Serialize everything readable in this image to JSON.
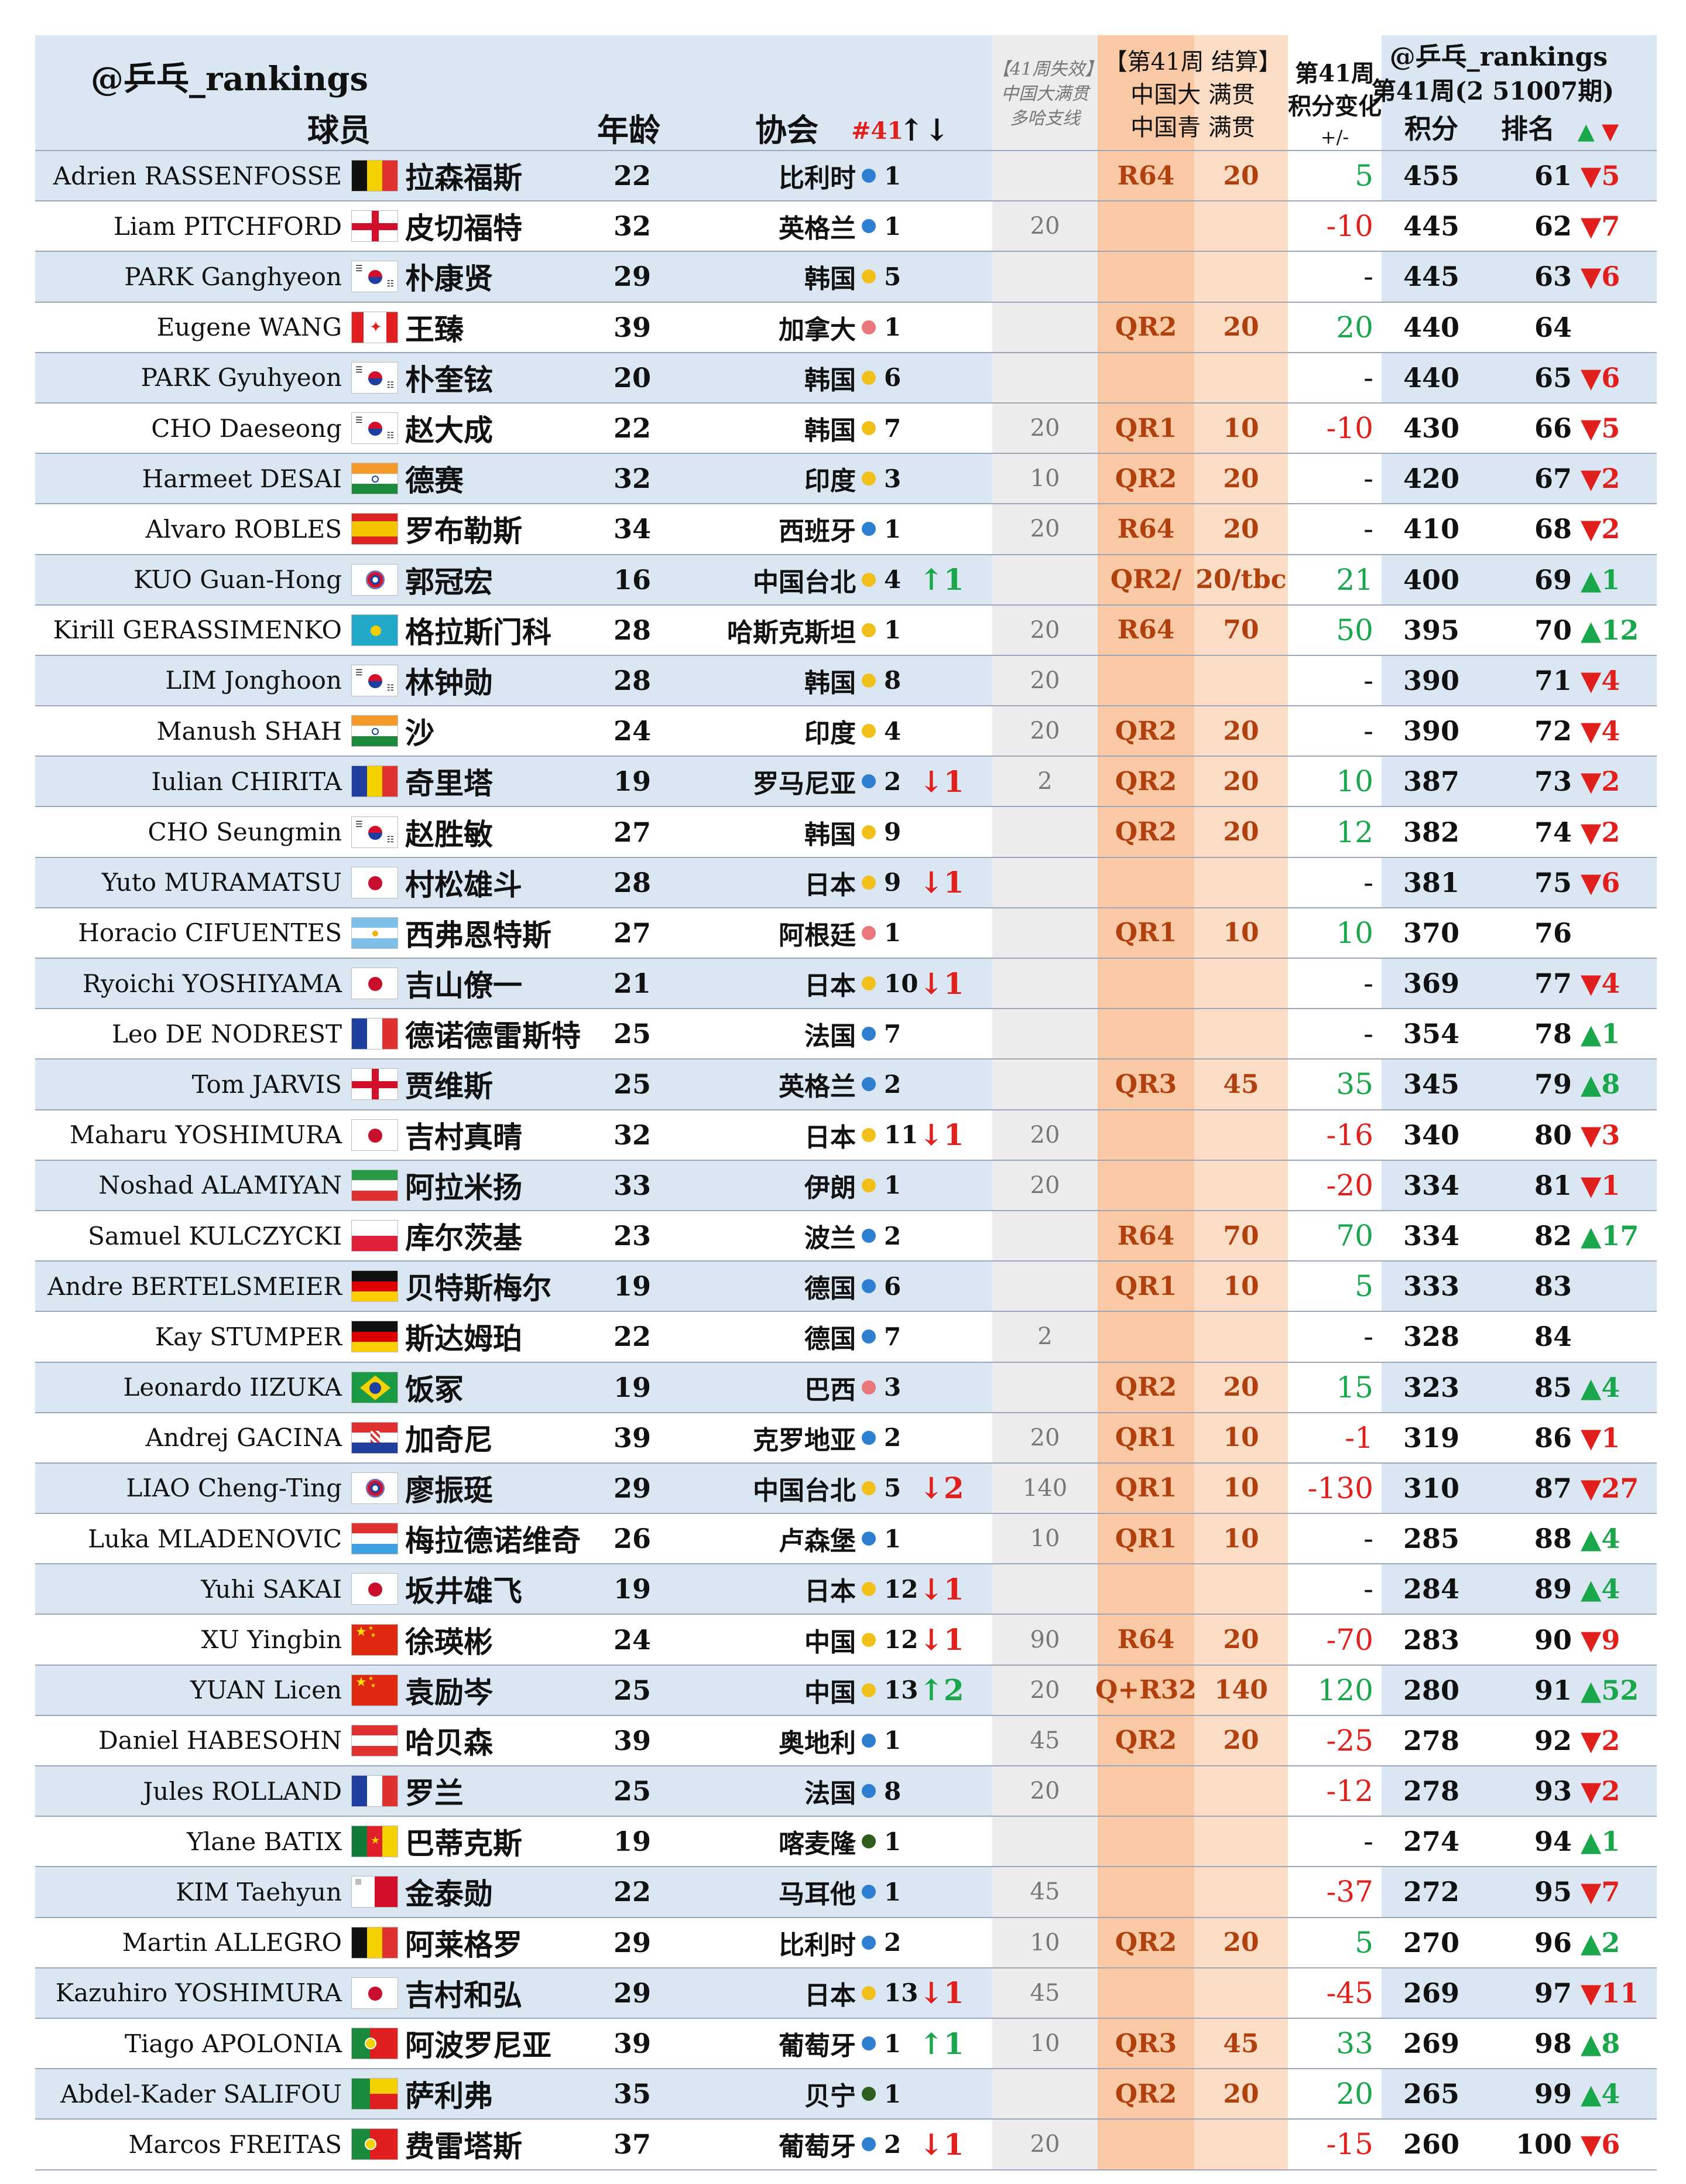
{
  "header": {
    "handle_left": "@乒乓_rankings",
    "col_player": "球员",
    "col_age": "年龄",
    "col_assoc": "协会",
    "col_rank41": "#41",
    "col_rank41_arrows": "↑↓",
    "expiry_line1": "【41周失效】",
    "expiry_line2": "中国大满贯",
    "expiry_line3": "多哈支线",
    "event_line1": "【第41周 结算】",
    "event_line2": "中国大 满贯",
    "event_line3": "中国青 满贯",
    "change_line1": "第41周",
    "change_line2": "积分变化",
    "change_line3": "+/-",
    "handle_right": "@乒乓_rankings",
    "week_label": "第41周(2 51007期)",
    "col_points": "积分",
    "col_rank": "排名",
    "rank_arrows": "▲ ▼"
  },
  "colors": {
    "blue": "#2f7fd0",
    "yellow": "#f2c01b",
    "pink": "#e8767a",
    "darkgreen": "#2e5e1e",
    "up": "#1aa64a",
    "down": "#e0201c"
  },
  "players": [
    {
      "en": "Adrien RASSENFOSSE",
      "flag": "belgium",
      "cn": "拉森福斯",
      "age": "22",
      "assoc": "比利时",
      "dot": "blue",
      "rk": "1",
      "rkchg": "",
      "rkdir": "",
      "exp": "",
      "ev": "R64",
      "ep": "20",
      "chg": "5",
      "chgdir": "up",
      "pts": "455",
      "pos": "61",
      "mv": "▼5",
      "mvdir": "down"
    },
    {
      "en": "Liam PITCHFORD",
      "flag": "england",
      "cn": "皮切福特",
      "age": "32",
      "assoc": "英格兰",
      "dot": "blue",
      "rk": "1",
      "rkchg": "",
      "rkdir": "",
      "exp": "20",
      "ev": "",
      "ep": "",
      "chg": "-10",
      "chgdir": "down",
      "pts": "445",
      "pos": "62",
      "mv": "▼7",
      "mvdir": "down"
    },
    {
      "en": "PARK Ganghyeon",
      "flag": "korea",
      "cn": "朴康贤",
      "age": "29",
      "assoc": "韩国",
      "dot": "yellow",
      "rk": "5",
      "rkchg": "",
      "rkdir": "",
      "exp": "",
      "ev": "",
      "ep": "",
      "chg": "-",
      "chgdir": "none",
      "pts": "445",
      "pos": "63",
      "mv": "▼6",
      "mvdir": "down"
    },
    {
      "en": "Eugene WANG",
      "flag": "canada",
      "cn": "王臻",
      "age": "39",
      "assoc": "加拿大",
      "dot": "pink",
      "rk": "1",
      "rkchg": "",
      "rkdir": "",
      "exp": "",
      "ev": "QR2",
      "ep": "20",
      "chg": "20",
      "chgdir": "up",
      "pts": "440",
      "pos": "64",
      "mv": "",
      "mvdir": ""
    },
    {
      "en": "PARK Gyuhyeon",
      "flag": "korea",
      "cn": "朴奎铉",
      "age": "20",
      "assoc": "韩国",
      "dot": "yellow",
      "rk": "6",
      "rkchg": "",
      "rkdir": "",
      "exp": "",
      "ev": "",
      "ep": "",
      "chg": "-",
      "chgdir": "none",
      "pts": "440",
      "pos": "65",
      "mv": "▼6",
      "mvdir": "down"
    },
    {
      "en": "CHO Daeseong",
      "flag": "korea",
      "cn": "赵大成",
      "age": "22",
      "assoc": "韩国",
      "dot": "yellow",
      "rk": "7",
      "rkchg": "",
      "rkdir": "",
      "exp": "20",
      "ev": "QR1",
      "ep": "10",
      "chg": "-10",
      "chgdir": "down",
      "pts": "430",
      "pos": "66",
      "mv": "▼5",
      "mvdir": "down"
    },
    {
      "en": "Harmeet DESAI",
      "flag": "india",
      "cn": "德赛",
      "age": "32",
      "assoc": "印度",
      "dot": "yellow",
      "rk": "3",
      "rkchg": "",
      "rkdir": "",
      "exp": "10",
      "ev": "QR2",
      "ep": "20",
      "chg": "-",
      "chgdir": "none",
      "pts": "420",
      "pos": "67",
      "mv": "▼2",
      "mvdir": "down"
    },
    {
      "en": "Alvaro ROBLES",
      "flag": "spain",
      "cn": "罗布勒斯",
      "age": "34",
      "assoc": "西班牙",
      "dot": "blue",
      "rk": "1",
      "rkchg": "",
      "rkdir": "",
      "exp": "20",
      "ev": "R64",
      "ep": "20",
      "chg": "-",
      "chgdir": "none",
      "pts": "410",
      "pos": "68",
      "mv": "▼2",
      "mvdir": "down"
    },
    {
      "en": "KUO Guan-Hong",
      "flag": "tpe",
      "cn": "郭冠宏",
      "age": "16",
      "assoc": "中国台北",
      "dot": "yellow",
      "rk": "4",
      "rkchg": "↑1",
      "rkdir": "up",
      "exp": "",
      "ev": "QR2/",
      "ep": "20/tbc",
      "chg": "21",
      "chgdir": "up",
      "pts": "400",
      "pos": "69",
      "mv": "▲1",
      "mvdir": "up"
    },
    {
      "en": "Kirill GERASSIMENKO",
      "flag": "kazakhstan",
      "cn": "格拉斯门科",
      "age": "28",
      "assoc": "哈斯克斯坦",
      "dot": "yellow",
      "rk": "1",
      "rkchg": "",
      "rkdir": "",
      "exp": "20",
      "ev": "R64",
      "ep": "70",
      "chg": "50",
      "chgdir": "up",
      "pts": "395",
      "pos": "70",
      "mv": "▲12",
      "mvdir": "up"
    },
    {
      "en": "LIM Jonghoon",
      "flag": "korea",
      "cn": "林钟勋",
      "age": "28",
      "assoc": "韩国",
      "dot": "yellow",
      "rk": "8",
      "rkchg": "",
      "rkdir": "",
      "exp": "20",
      "ev": "",
      "ep": "",
      "chg": "-",
      "chgdir": "none",
      "pts": "390",
      "pos": "71",
      "mv": "▼4",
      "mvdir": "down"
    },
    {
      "en": "Manush SHAH",
      "flag": "india",
      "cn": "沙",
      "age": "24",
      "assoc": "印度",
      "dot": "yellow",
      "rk": "4",
      "rkchg": "",
      "rkdir": "",
      "exp": "20",
      "ev": "QR2",
      "ep": "20",
      "chg": "-",
      "chgdir": "none",
      "pts": "390",
      "pos": "72",
      "mv": "▼4",
      "mvdir": "down"
    },
    {
      "en": "Iulian CHIRITA",
      "flag": "romania",
      "cn": "奇里塔",
      "age": "19",
      "assoc": "罗马尼亚",
      "dot": "blue",
      "rk": "2",
      "rkchg": "↓1",
      "rkdir": "down",
      "exp": "2",
      "ev": "QR2",
      "ep": "20",
      "chg": "10",
      "chgdir": "up",
      "pts": "387",
      "pos": "73",
      "mv": "▼2",
      "mvdir": "down"
    },
    {
      "en": "CHO Seungmin",
      "flag": "korea",
      "cn": "赵胜敏",
      "age": "27",
      "assoc": "韩国",
      "dot": "yellow",
      "rk": "9",
      "rkchg": "",
      "rkdir": "",
      "exp": "",
      "ev": "QR2",
      "ep": "20",
      "chg": "12",
      "chgdir": "up",
      "pts": "382",
      "pos": "74",
      "mv": "▼2",
      "mvdir": "down"
    },
    {
      "en": "Yuto MURAMATSU",
      "flag": "japan",
      "cn": "村松雄斗",
      "age": "28",
      "assoc": "日本",
      "dot": "yellow",
      "rk": "9",
      "rkchg": "↓1",
      "rkdir": "down",
      "exp": "",
      "ev": "",
      "ep": "",
      "chg": "-",
      "chgdir": "none",
      "pts": "381",
      "pos": "75",
      "mv": "▼6",
      "mvdir": "down"
    },
    {
      "en": "Horacio CIFUENTES",
      "flag": "argentina",
      "cn": "西弗恩特斯",
      "age": "27",
      "assoc": "阿根廷",
      "dot": "pink",
      "rk": "1",
      "rkchg": "",
      "rkdir": "",
      "exp": "",
      "ev": "QR1",
      "ep": "10",
      "chg": "10",
      "chgdir": "up",
      "pts": "370",
      "pos": "76",
      "mv": "",
      "mvdir": ""
    },
    {
      "en": "Ryoichi YOSHIYAMA",
      "flag": "japan",
      "cn": "吉山僚一",
      "age": "21",
      "assoc": "日本",
      "dot": "yellow",
      "rk": "10",
      "rkchg": "↓1",
      "rkdir": "down",
      "exp": "",
      "ev": "",
      "ep": "",
      "chg": "-",
      "chgdir": "none",
      "pts": "369",
      "pos": "77",
      "mv": "▼4",
      "mvdir": "down"
    },
    {
      "en": "Leo DE NODREST",
      "flag": "france",
      "cn": "德诺德雷斯特",
      "age": "25",
      "assoc": "法国",
      "dot": "blue",
      "rk": "7",
      "rkchg": "",
      "rkdir": "",
      "exp": "",
      "ev": "",
      "ep": "",
      "chg": "-",
      "chgdir": "none",
      "pts": "354",
      "pos": "78",
      "mv": "▲1",
      "mvdir": "up"
    },
    {
      "en": "Tom JARVIS",
      "flag": "england",
      "cn": "贾维斯",
      "age": "25",
      "assoc": "英格兰",
      "dot": "blue",
      "rk": "2",
      "rkchg": "",
      "rkdir": "",
      "exp": "",
      "ev": "QR3",
      "ep": "45",
      "chg": "35",
      "chgdir": "up",
      "pts": "345",
      "pos": "79",
      "mv": "▲8",
      "mvdir": "up"
    },
    {
      "en": "Maharu YOSHIMURA",
      "flag": "japan",
      "cn": "吉村真晴",
      "age": "32",
      "assoc": "日本",
      "dot": "yellow",
      "rk": "11",
      "rkchg": "↓1",
      "rkdir": "down",
      "exp": "20",
      "ev": "",
      "ep": "",
      "chg": "-16",
      "chgdir": "down",
      "pts": "340",
      "pos": "80",
      "mv": "▼3",
      "mvdir": "down"
    },
    {
      "en": "Noshad ALAMIYAN",
      "flag": "iran",
      "cn": "阿拉米扬",
      "age": "33",
      "assoc": "伊朗",
      "dot": "yellow",
      "rk": "1",
      "rkchg": "",
      "rkdir": "",
      "exp": "20",
      "ev": "",
      "ep": "",
      "chg": "-20",
      "chgdir": "down",
      "pts": "334",
      "pos": "81",
      "mv": "▼1",
      "mvdir": "down"
    },
    {
      "en": "Samuel KULCZYCKI",
      "flag": "poland",
      "cn": "库尔茨基",
      "age": "23",
      "assoc": "波兰",
      "dot": "blue",
      "rk": "2",
      "rkchg": "",
      "rkdir": "",
      "exp": "",
      "ev": "R64",
      "ep": "70",
      "chg": "70",
      "chgdir": "up",
      "pts": "334",
      "pos": "82",
      "mv": "▲17",
      "mvdir": "up"
    },
    {
      "en": "Andre BERTELSMEIER",
      "flag": "germany",
      "cn": "贝特斯梅尔",
      "age": "19",
      "assoc": "德国",
      "dot": "blue",
      "rk": "6",
      "rkchg": "",
      "rkdir": "",
      "exp": "",
      "ev": "QR1",
      "ep": "10",
      "chg": "5",
      "chgdir": "up",
      "pts": "333",
      "pos": "83",
      "mv": "",
      "mvdir": ""
    },
    {
      "en": "Kay STUMPER",
      "flag": "germany",
      "cn": "斯达姆珀",
      "age": "22",
      "assoc": "德国",
      "dot": "blue",
      "rk": "7",
      "rkchg": "",
      "rkdir": "",
      "exp": "2",
      "ev": "",
      "ep": "",
      "chg": "-",
      "chgdir": "none",
      "pts": "328",
      "pos": "84",
      "mv": "",
      "mvdir": ""
    },
    {
      "en": "Leonardo IIZUKA",
      "flag": "brazil",
      "cn": "饭冢",
      "age": "19",
      "assoc": "巴西",
      "dot": "pink",
      "rk": "3",
      "rkchg": "",
      "rkdir": "",
      "exp": "",
      "ev": "QR2",
      "ep": "20",
      "chg": "15",
      "chgdir": "up",
      "pts": "323",
      "pos": "85",
      "mv": "▲4",
      "mvdir": "up"
    },
    {
      "en": "Andrej GACINA",
      "flag": "croatia",
      "cn": "加奇尼",
      "age": "39",
      "assoc": "克罗地亚",
      "dot": "blue",
      "rk": "2",
      "rkchg": "",
      "rkdir": "",
      "exp": "20",
      "ev": "QR1",
      "ep": "10",
      "chg": "-1",
      "chgdir": "down",
      "pts": "319",
      "pos": "86",
      "mv": "▼1",
      "mvdir": "down"
    },
    {
      "en": "LIAO Cheng-Ting",
      "flag": "tpe",
      "cn": "廖振珽",
      "age": "29",
      "assoc": "中国台北",
      "dot": "yellow",
      "rk": "5",
      "rkchg": "↓2",
      "rkdir": "down",
      "exp": "140",
      "ev": "QR1",
      "ep": "10",
      "chg": "-130",
      "chgdir": "down",
      "pts": "310",
      "pos": "87",
      "mv": "▼27",
      "mvdir": "down"
    },
    {
      "en": "Luka MLADENOVIC",
      "flag": "luxembourg",
      "cn": "梅拉德诺维奇",
      "age": "26",
      "assoc": "卢森堡",
      "dot": "blue",
      "rk": "1",
      "rkchg": "",
      "rkdir": "",
      "exp": "10",
      "ev": "QR1",
      "ep": "10",
      "chg": "-",
      "chgdir": "none",
      "pts": "285",
      "pos": "88",
      "mv": "▲4",
      "mvdir": "up"
    },
    {
      "en": "Yuhi SAKAI",
      "flag": "japan",
      "cn": "坂井雄飞",
      "age": "19",
      "assoc": "日本",
      "dot": "yellow",
      "rk": "12",
      "rkchg": "↓1",
      "rkdir": "down",
      "exp": "",
      "ev": "",
      "ep": "",
      "chg": "-",
      "chgdir": "none",
      "pts": "284",
      "pos": "89",
      "mv": "▲4",
      "mvdir": "up"
    },
    {
      "en": "XU Yingbin",
      "flag": "china",
      "cn": "徐瑛彬",
      "age": "24",
      "assoc": "中国",
      "dot": "yellow",
      "rk": "12",
      "rkchg": "↓1",
      "rkdir": "down",
      "exp": "90",
      "ev": "R64",
      "ep": "20",
      "chg": "-70",
      "chgdir": "down",
      "pts": "283",
      "pos": "90",
      "mv": "▼9",
      "mvdir": "down"
    },
    {
      "en": "YUAN Licen",
      "flag": "china",
      "cn": "袁励岑",
      "age": "25",
      "assoc": "中国",
      "dot": "yellow",
      "rk": "13",
      "rkchg": "↑2",
      "rkdir": "up",
      "exp": "20",
      "ev": "Q+R32",
      "ep": "140",
      "chg": "120",
      "chgdir": "up",
      "pts": "280",
      "pos": "91",
      "mv": "▲52",
      "mvdir": "up"
    },
    {
      "en": "Daniel HABESOHN",
      "flag": "austria",
      "cn": "哈贝森",
      "age": "39",
      "assoc": "奥地利",
      "dot": "blue",
      "rk": "1",
      "rkchg": "",
      "rkdir": "",
      "exp": "45",
      "ev": "QR2",
      "ep": "20",
      "chg": "-25",
      "chgdir": "down",
      "pts": "278",
      "pos": "92",
      "mv": "▼2",
      "mvdir": "down"
    },
    {
      "en": "Jules ROLLAND",
      "flag": "france",
      "cn": "罗兰",
      "age": "25",
      "assoc": "法国",
      "dot": "blue",
      "rk": "8",
      "rkchg": "",
      "rkdir": "",
      "exp": "20",
      "ev": "",
      "ep": "",
      "chg": "-12",
      "chgdir": "down",
      "pts": "278",
      "pos": "93",
      "mv": "▼2",
      "mvdir": "down"
    },
    {
      "en": "Ylane BATIX",
      "flag": "cameroon",
      "cn": "巴蒂克斯",
      "age": "19",
      "assoc": "喀麦隆",
      "dot": "darkgreen",
      "rk": "1",
      "rkchg": "",
      "rkdir": "",
      "exp": "",
      "ev": "",
      "ep": "",
      "chg": "-",
      "chgdir": "none",
      "pts": "274",
      "pos": "94",
      "mv": "▲1",
      "mvdir": "up"
    },
    {
      "en": "KIM Taehyun",
      "flag": "malta",
      "cn": "金泰勋",
      "age": "22",
      "assoc": "马耳他",
      "dot": "blue",
      "rk": "1",
      "rkchg": "",
      "rkdir": "",
      "exp": "45",
      "ev": "",
      "ep": "",
      "chg": "-37",
      "chgdir": "down",
      "pts": "272",
      "pos": "95",
      "mv": "▼7",
      "mvdir": "down"
    },
    {
      "en": "Martin ALLEGRO",
      "flag": "belgium",
      "cn": "阿莱格罗",
      "age": "29",
      "assoc": "比利时",
      "dot": "blue",
      "rk": "2",
      "rkchg": "",
      "rkdir": "",
      "exp": "10",
      "ev": "QR2",
      "ep": "20",
      "chg": "5",
      "chgdir": "up",
      "pts": "270",
      "pos": "96",
      "mv": "▲2",
      "mvdir": "up"
    },
    {
      "en": "Kazuhiro YOSHIMURA",
      "flag": "japan",
      "cn": "吉村和弘",
      "age": "29",
      "assoc": "日本",
      "dot": "yellow",
      "rk": "13",
      "rkchg": "↓1",
      "rkdir": "down",
      "exp": "45",
      "ev": "",
      "ep": "",
      "chg": "-45",
      "chgdir": "down",
      "pts": "269",
      "pos": "97",
      "mv": "▼11",
      "mvdir": "down"
    },
    {
      "en": "Tiago APOLONIA",
      "flag": "portugal",
      "cn": "阿波罗尼亚",
      "age": "39",
      "assoc": "葡萄牙",
      "dot": "blue",
      "rk": "1",
      "rkchg": "↑1",
      "rkdir": "up",
      "exp": "10",
      "ev": "QR3",
      "ep": "45",
      "chg": "33",
      "chgdir": "up",
      "pts": "269",
      "pos": "98",
      "mv": "▲8",
      "mvdir": "up"
    },
    {
      "en": "Abdel-Kader SALIFOU",
      "flag": "benin",
      "cn": "萨利弗",
      "age": "35",
      "assoc": "贝宁",
      "dot": "darkgreen",
      "rk": "1",
      "rkchg": "",
      "rkdir": "",
      "exp": "",
      "ev": "QR2",
      "ep": "20",
      "chg": "20",
      "chgdir": "up",
      "pts": "265",
      "pos": "99",
      "mv": "▲4",
      "mvdir": "up"
    },
    {
      "en": "Marcos FREITAS",
      "flag": "portugal",
      "cn": "费雷塔斯",
      "age": "37",
      "assoc": "葡萄牙",
      "dot": "blue",
      "rk": "2",
      "rkchg": "↓1",
      "rkdir": "down",
      "exp": "20",
      "ev": "",
      "ep": "",
      "chg": "-15",
      "chgdir": "down",
      "pts": "260",
      "pos": "100",
      "mv": "▼6",
      "mvdir": "down"
    }
  ]
}
